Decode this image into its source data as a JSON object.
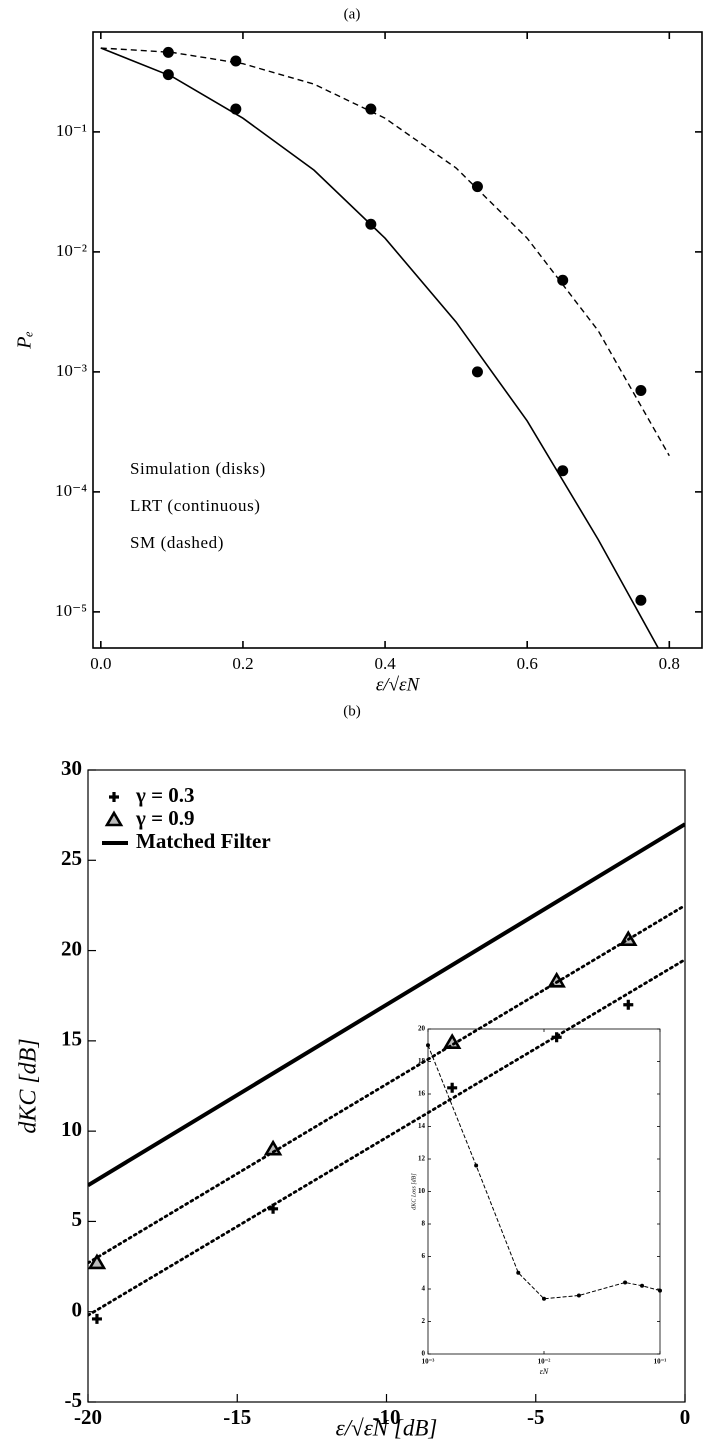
{
  "chart_data": [
    {
      "type": "line",
      "title": "(a)",
      "xlabel": "ε/√εN",
      "ylabel": "Pₑ",
      "xlim": [
        -0.011,
        0.846
      ],
      "ylim": [
        5e-06,
        0.68
      ],
      "log_y": true,
      "xticks": [
        {
          "value": 0,
          "label": "0.0"
        },
        {
          "value": 0.2,
          "label": "0.2"
        },
        {
          "value": 0.4,
          "label": "0.4"
        },
        {
          "value": 0.6,
          "label": "0.6"
        },
        {
          "value": 0.8,
          "label": "0.8"
        }
      ],
      "yticks": [
        {
          "value": 1e-05,
          "label": "10⁻⁵"
        },
        {
          "value": 0.0001,
          "label": "10⁻⁴"
        },
        {
          "value": 0.001,
          "label": "10⁻³"
        },
        {
          "value": 0.01,
          "label": "10⁻²"
        },
        {
          "value": 0.1,
          "label": "10⁻¹"
        }
      ],
      "annotations": [
        "Simulation (disks)",
        "LRT (continuous)",
        "SM (dashed)"
      ],
      "series": [
        {
          "style": "dashed",
          "color": "#000",
          "x": [
            0,
            0.1,
            0.2,
            0.3,
            0.4,
            0.5,
            0.6,
            0.7,
            0.8
          ],
          "values": [
            0.5,
            0.46,
            0.37,
            0.25,
            0.13,
            0.05,
            0.013,
            0.0022,
            0.0002
          ]
        },
        {
          "style": "solid",
          "color": "#000",
          "x": [
            0,
            0.1,
            0.2,
            0.3,
            0.4,
            0.5,
            0.6,
            0.7,
            0.8
          ],
          "values": [
            0.5,
            0.29,
            0.13,
            0.048,
            0.013,
            0.0026,
            0.00039,
            4e-05,
            3.4e-06
          ]
        },
        {
          "marker": "disk",
          "color": "#000",
          "x": [
            0.095,
            0.19,
            0.38,
            0.53,
            0.65,
            0.76
          ],
          "values": [
            0.46,
            0.39,
            0.155,
            0.035,
            0.0058,
            0.0007
          ]
        },
        {
          "marker": "disk",
          "color": "#000",
          "x": [
            0.095,
            0.19,
            0.38,
            0.53,
            0.65,
            0.76
          ],
          "values": [
            0.3,
            0.155,
            0.017,
            0.001,
            0.00015,
            1.25e-05
          ]
        }
      ]
    },
    {
      "type": "line",
      "title": "(b)",
      "xlabel": "ε/√εN [dB]",
      "ylabel": "dKC [dB]",
      "xlim": [
        -20,
        0
      ],
      "ylim": [
        -5,
        30
      ],
      "xticks": [
        -20,
        -15,
        -10,
        -5,
        0
      ],
      "yticks": [
        -5,
        0,
        5,
        10,
        15,
        20,
        25,
        30
      ],
      "legend": "upper left",
      "series": [
        {
          "name": "γ = 0.3",
          "marker": "plus",
          "color": "#000",
          "x": [
            -19.7,
            -13.8,
            -7.8,
            -4.3,
            -1.9
          ],
          "values": [
            -0.4,
            5.7,
            12.4,
            15.2,
            17.0
          ]
        },
        {
          "name": "γ = 0.9",
          "marker": "triangle",
          "color": "#000",
          "x": [
            -19.7,
            -13.8,
            -7.8,
            -4.3,
            -1.9
          ],
          "values": [
            2.7,
            9.0,
            14.9,
            18.3,
            20.6
          ]
        },
        {
          "name": "Matched Filter",
          "style": "thick",
          "color": "#000",
          "x": [
            -20,
            0
          ],
          "values": [
            7,
            27
          ]
        },
        {
          "style": "dotted",
          "color": "#000",
          "x": [
            -20,
            0
          ],
          "values": [
            -0.2,
            19.5
          ]
        },
        {
          "style": "dotted",
          "color": "#000",
          "x": [
            -20,
            0
          ],
          "values": [
            2.7,
            22.5
          ]
        }
      ]
    },
    {
      "type": "line",
      "xlabel": "εN",
      "ylabel": "dKC Loss [dB]",
      "xlim": [
        0.001,
        0.1
      ],
      "ylim": [
        0,
        20
      ],
      "log_x": true,
      "xticks": [
        {
          "value": 0.001,
          "label": "10⁻³"
        },
        {
          "value": 0.01,
          "label": "10⁻²"
        },
        {
          "value": 0.1,
          "label": "10⁻¹"
        }
      ],
      "yticks": [
        0,
        2,
        4,
        6,
        8,
        10,
        12,
        14,
        16,
        18,
        20
      ],
      "series": [
        {
          "style": "dashed-dot",
          "marker": "dot",
          "color": "#000",
          "x": [
            0.001,
            0.0026,
            0.006,
            0.01,
            0.02,
            0.05,
            0.07,
            0.1
          ],
          "values": [
            19,
            11.6,
            5,
            3.4,
            3.6,
            4.4,
            4.2,
            3.9
          ]
        }
      ]
    }
  ]
}
